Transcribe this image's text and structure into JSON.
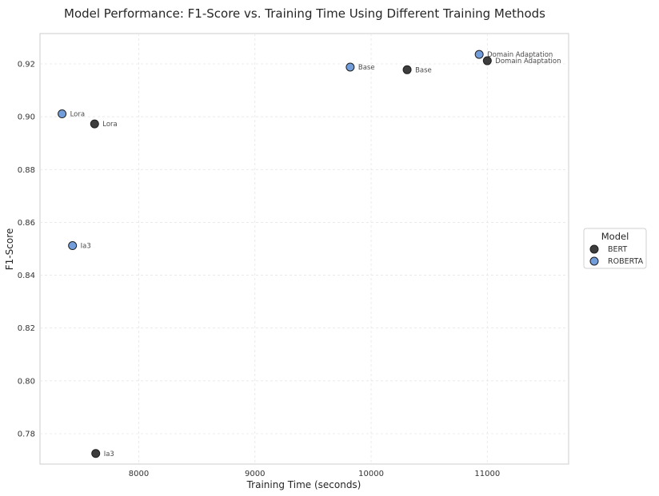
{
  "chart_data": {
    "type": "scatter",
    "title": "Model Performance: F1-Score vs. Training Time Using Different Training Methods",
    "xlabel": "Training Time (seconds)",
    "ylabel": "F1-Score",
    "xlim": [
      7150,
      11700
    ],
    "ylim": [
      0.7685,
      0.9315
    ],
    "xticks": [
      8000,
      9000,
      10000,
      11000
    ],
    "yticks": [
      0.78,
      0.8,
      0.82,
      0.84,
      0.86,
      0.88,
      0.9,
      0.92
    ],
    "xtick_labels": [
      "8000",
      "9000",
      "10000",
      "11000"
    ],
    "ytick_labels": [
      "0.78",
      "0.80",
      "0.82",
      "0.84",
      "0.86",
      "0.88",
      "0.90",
      "0.92"
    ],
    "grid": true,
    "legend": {
      "title": "Model",
      "placement": "right"
    },
    "series": [
      {
        "name": "BERT",
        "color": "#3d3d3d",
        "points": [
          {
            "x": 7620,
            "y": 0.8973,
            "label": "Lora"
          },
          {
            "x": 7630,
            "y": 0.7725,
            "label": "Ia3"
          },
          {
            "x": 10310,
            "y": 0.9178,
            "label": "Base"
          },
          {
            "x": 11000,
            "y": 0.9212,
            "label": "Domain Adaptation"
          }
        ]
      },
      {
        "name": "ROBERTA",
        "color": "#729ddb",
        "points": [
          {
            "x": 7340,
            "y": 0.9011,
            "label": "Lora"
          },
          {
            "x": 7430,
            "y": 0.8512,
            "label": "Ia3"
          },
          {
            "x": 9820,
            "y": 0.9188,
            "label": "Base"
          },
          {
            "x": 10930,
            "y": 0.9236,
            "label": "Domain Adaptation"
          }
        ]
      }
    ]
  }
}
